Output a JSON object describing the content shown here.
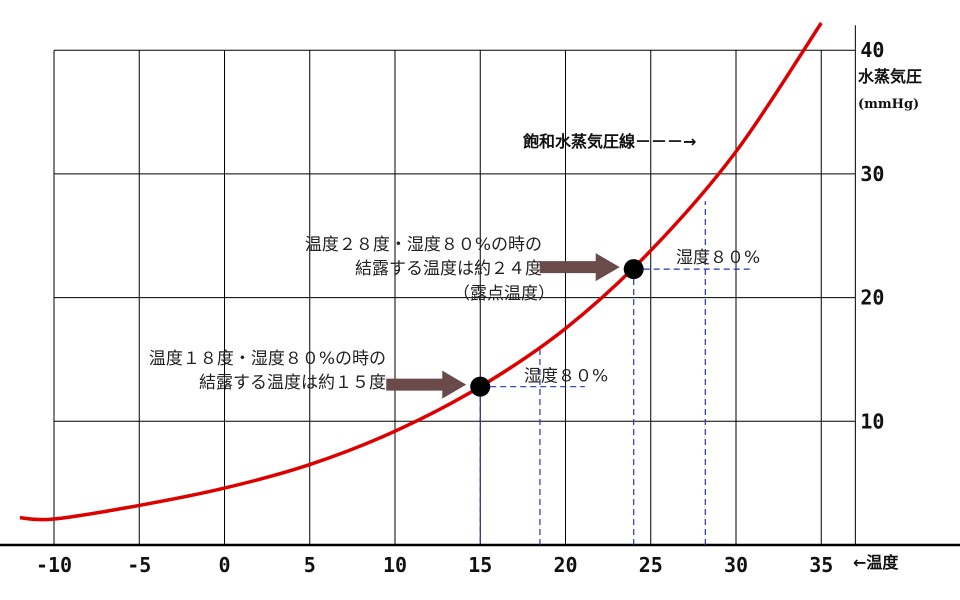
{
  "chart_data": {
    "type": "line",
    "title": "",
    "xlabel": "←温度",
    "ylabel": "水蒸気圧",
    "y_unit": "(mmHg)",
    "xlim": [
      -10,
      37
    ],
    "ylim": [
      0,
      40
    ],
    "x_ticks": [
      "-10",
      "-5",
      "0",
      "5",
      "10",
      "15",
      "20",
      "25",
      "30",
      "35"
    ],
    "y_ticks": [
      "10",
      "20",
      "30",
      "40"
    ],
    "grid": true,
    "series": [
      {
        "name": "飽和水蒸気圧線",
        "color": "#dd0000",
        "x": [
          -12,
          -10,
          -5,
          0,
          5,
          10,
          15,
          20,
          25,
          30,
          35
        ],
        "y": [
          2.2,
          2.1,
          3.2,
          4.6,
          6.5,
          9.2,
          12.8,
          17.5,
          23.8,
          31.8,
          42.2
        ]
      }
    ],
    "curve_label": "飽和水蒸気圧線－－－→",
    "points": [
      {
        "x": 15,
        "y": 12.8
      },
      {
        "x": 24,
        "y": 22.3
      }
    ],
    "annotations": [
      {
        "lines": [
          "温度１８度・湿度８０%の時の",
          "結露する温度は約１５度"
        ],
        "humidity_label": "湿度８０%",
        "guide": {
          "temp_x": 18.5,
          "saturation_y": 15.9,
          "vapor_y": 12.8,
          "dew_x": 15
        }
      },
      {
        "lines": [
          "温度２８度・湿度８０%の時の",
          "結露する温度は約２４度",
          "（露点温度）"
        ],
        "humidity_label": "湿度８０%",
        "guide": {
          "temp_x": 28.2,
          "saturation_y": 27.8,
          "vapor_y": 22.3,
          "dew_x": 24
        }
      }
    ]
  }
}
